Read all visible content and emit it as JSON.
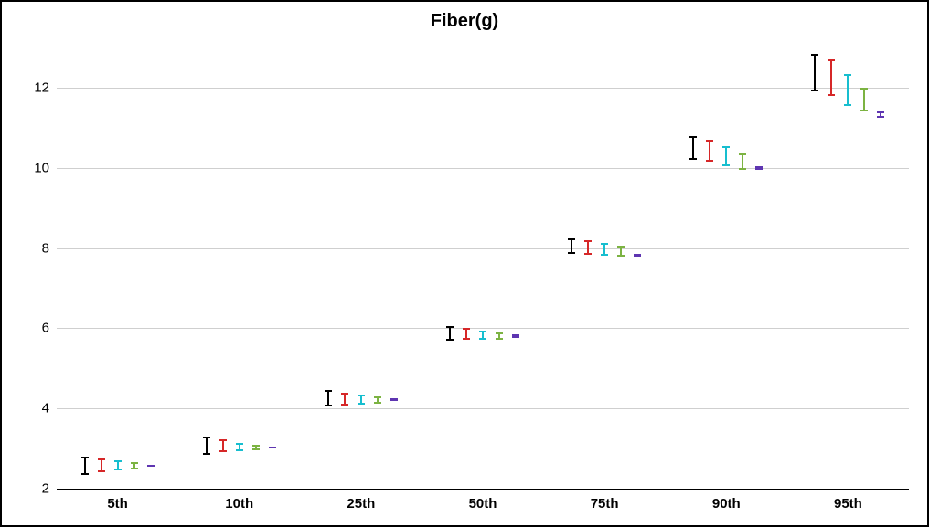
{
  "chart": {
    "title": "Fiber(g)",
    "title_fontsize": 20,
    "title_fontweight": 700,
    "background_color": "#ffffff",
    "border_color": "#000000",
    "grid_color": "#cfcfcf",
    "axis_color": "#000000",
    "tick_label_color": "#000000",
    "y_tick_fontsize": 15,
    "x_tick_fontsize": 15,
    "ylim": [
      2,
      13
    ],
    "y_ticks": [
      2,
      4,
      6,
      8,
      10,
      12
    ],
    "categories": [
      "5th",
      "10th",
      "25th",
      "50th",
      "75th",
      "90th",
      "95th"
    ],
    "series_colors": [
      "#000000",
      "#d62728",
      "#17becf",
      "#7cb342",
      "#5e35b1"
    ],
    "series_count": 5,
    "series_spacing": 18,
    "cap_width": 8,
    "stem_width": 2,
    "data": [
      [
        {
          "low": 2.35,
          "high": 2.8
        },
        {
          "low": 2.42,
          "high": 2.75
        },
        {
          "low": 2.45,
          "high": 2.7
        },
        {
          "low": 2.48,
          "high": 2.65
        },
        {
          "low": 2.55,
          "high": 2.6
        }
      ],
      [
        {
          "low": 2.85,
          "high": 3.3
        },
        {
          "low": 2.9,
          "high": 3.22
        },
        {
          "low": 2.93,
          "high": 3.15
        },
        {
          "low": 2.95,
          "high": 3.1
        },
        {
          "low": 3.0,
          "high": 3.05
        }
      ],
      [
        {
          "low": 4.05,
          "high": 4.45
        },
        {
          "low": 4.08,
          "high": 4.4
        },
        {
          "low": 4.1,
          "high": 4.35
        },
        {
          "low": 4.12,
          "high": 4.3
        },
        {
          "low": 4.18,
          "high": 4.25
        }
      ],
      [
        {
          "low": 5.7,
          "high": 6.05
        },
        {
          "low": 5.72,
          "high": 6.0
        },
        {
          "low": 5.72,
          "high": 5.95
        },
        {
          "low": 5.72,
          "high": 5.9
        },
        {
          "low": 5.76,
          "high": 5.84
        }
      ],
      [
        {
          "low": 7.85,
          "high": 8.25
        },
        {
          "low": 7.82,
          "high": 8.2
        },
        {
          "low": 7.8,
          "high": 8.12
        },
        {
          "low": 7.78,
          "high": 8.05
        },
        {
          "low": 7.78,
          "high": 7.86
        }
      ],
      [
        {
          "low": 10.2,
          "high": 10.8
        },
        {
          "low": 10.15,
          "high": 10.7
        },
        {
          "low": 10.05,
          "high": 10.55
        },
        {
          "low": 9.95,
          "high": 10.35
        },
        {
          "low": 9.95,
          "high": 10.05
        }
      ],
      [
        {
          "low": 11.9,
          "high": 12.85
        },
        {
          "low": 11.8,
          "high": 12.7
        },
        {
          "low": 11.55,
          "high": 12.35
        },
        {
          "low": 11.4,
          "high": 12.0
        },
        {
          "low": 11.25,
          "high": 11.4
        }
      ]
    ]
  }
}
